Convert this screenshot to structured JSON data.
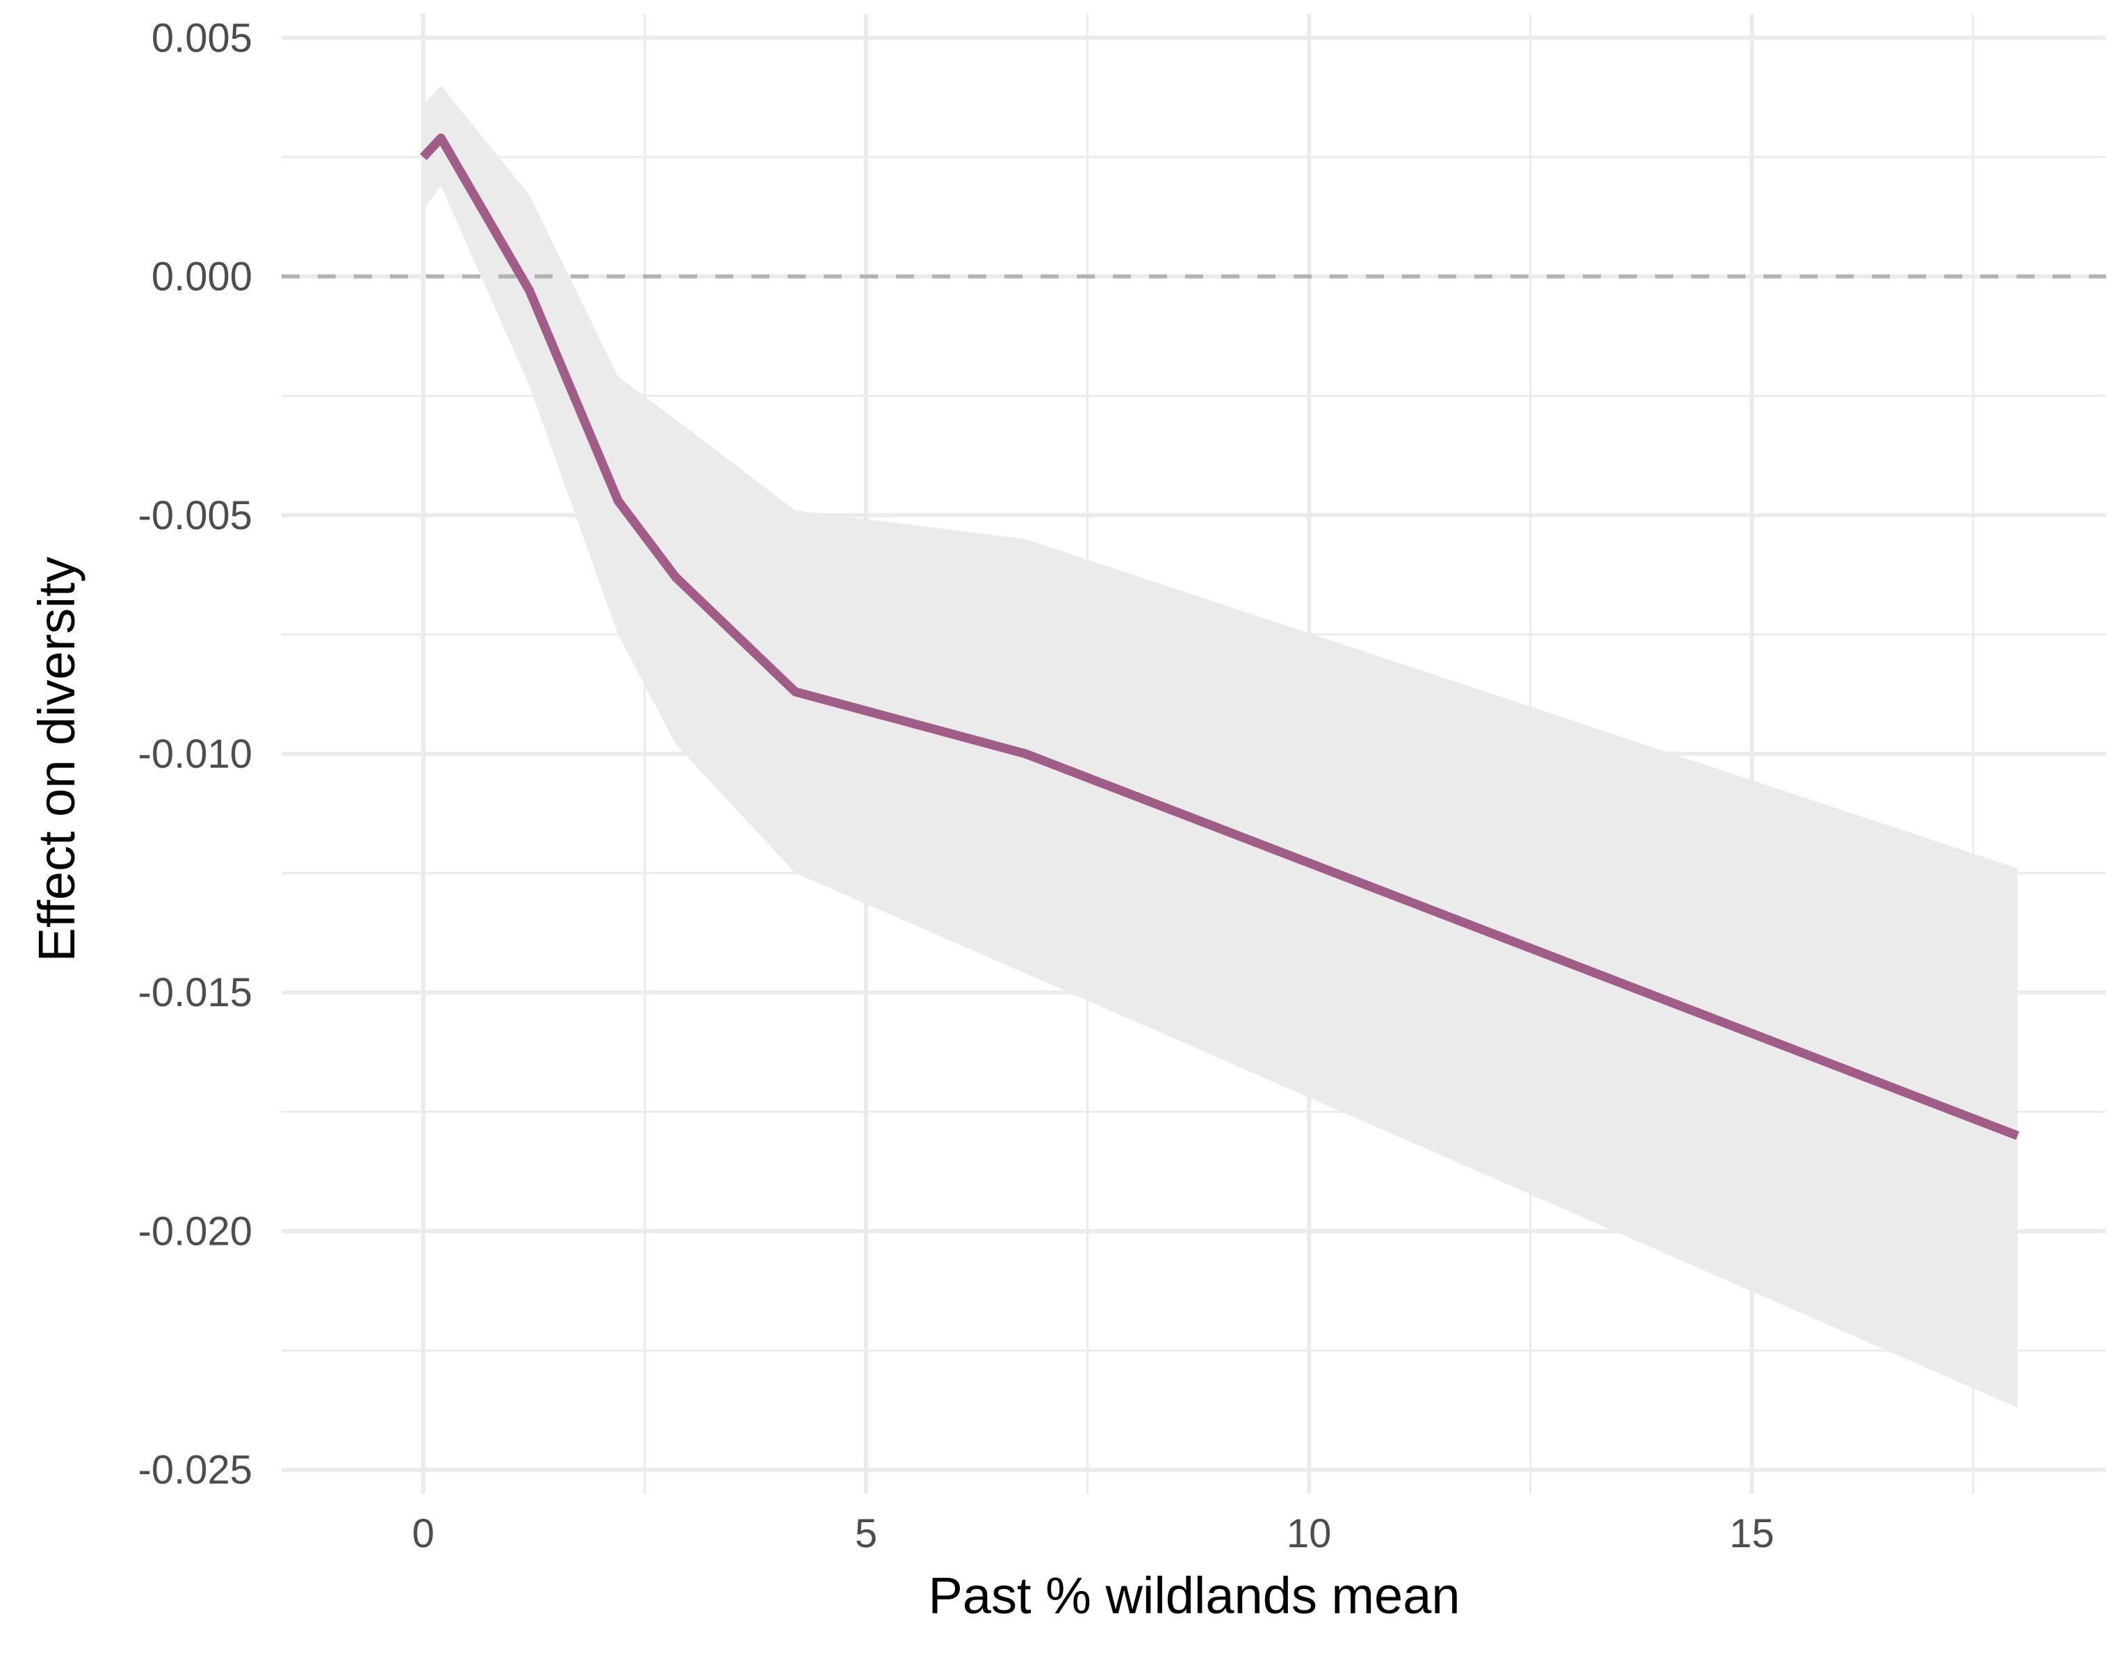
{
  "chart_data": {
    "type": "line",
    "title": "",
    "xlabel": "Past % wildlands mean",
    "ylabel": "Effect on diversity",
    "xlim": [
      -1.6,
      19.0
    ],
    "ylim": [
      -0.0255,
      0.0055
    ],
    "x_ticks": [
      0,
      5,
      10,
      15
    ],
    "x_tick_labels": [
      "0",
      "5",
      "10",
      "15"
    ],
    "x_minor_ticks": [
      2.5,
      7.5,
      12.5,
      17.5
    ],
    "y_ticks": [
      0.005,
      0.0,
      -0.005,
      -0.01,
      -0.015,
      -0.02,
      -0.025
    ],
    "y_tick_labels": [
      "0.005",
      "0.000",
      "-0.005",
      "-0.010",
      "-0.015",
      "-0.020",
      "-0.025"
    ],
    "y_minor_ticks": [
      0.0025,
      -0.0025,
      -0.0075,
      -0.0125,
      -0.0175,
      -0.0225
    ],
    "grid": true,
    "reference_line": {
      "y": 0.0,
      "style": "dashed",
      "color": "#b3b3b3"
    },
    "colors": {
      "line": "#a05d87",
      "ribbon": "#ebebeb",
      "grid": "#ebebeb"
    },
    "series": [
      {
        "x": [
          0.0,
          0.2,
          1.2,
          2.2,
          2.85,
          4.2,
          6.8,
          18.0
        ],
        "y": [
          0.0025,
          0.0029,
          -0.0003,
          -0.0047,
          -0.0063,
          -0.0087,
          -0.01,
          -0.018
        ],
        "lower": [
          0.0014,
          0.0019,
          -0.0023,
          -0.0075,
          -0.0098,
          -0.0125,
          -0.0146,
          -0.0237
        ],
        "upper": [
          0.0036,
          0.004,
          0.0017,
          -0.0021,
          -0.003,
          -0.0049,
          -0.0055,
          -0.0124
        ]
      }
    ]
  }
}
